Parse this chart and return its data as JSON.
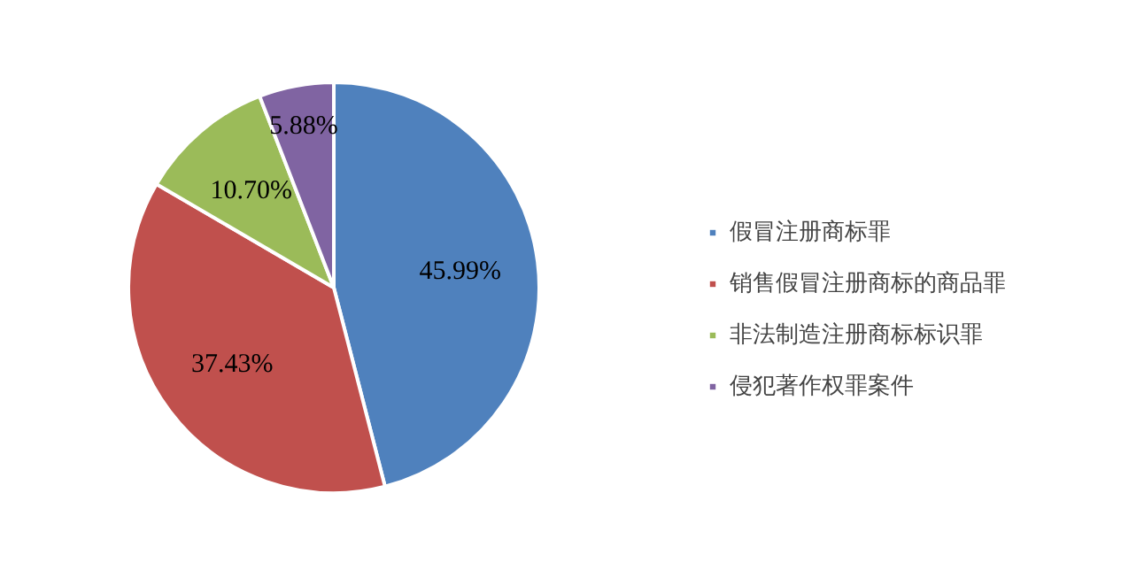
{
  "chart_data": {
    "type": "pie",
    "categories": [
      "假冒注册商标罪",
      "销售假冒注册商标的商品罪",
      "非法制造注册商标标识罪",
      "侵犯著作权罪案件"
    ],
    "values": [
      45.99,
      37.43,
      10.7,
      5.88
    ],
    "colors": [
      "#4f81bd",
      "#c0504d",
      "#9bbb59",
      "#8064a2"
    ],
    "value_labels": [
      "45.99%",
      "37.43%",
      "10.70%",
      "5.88%"
    ],
    "legend": "right"
  }
}
